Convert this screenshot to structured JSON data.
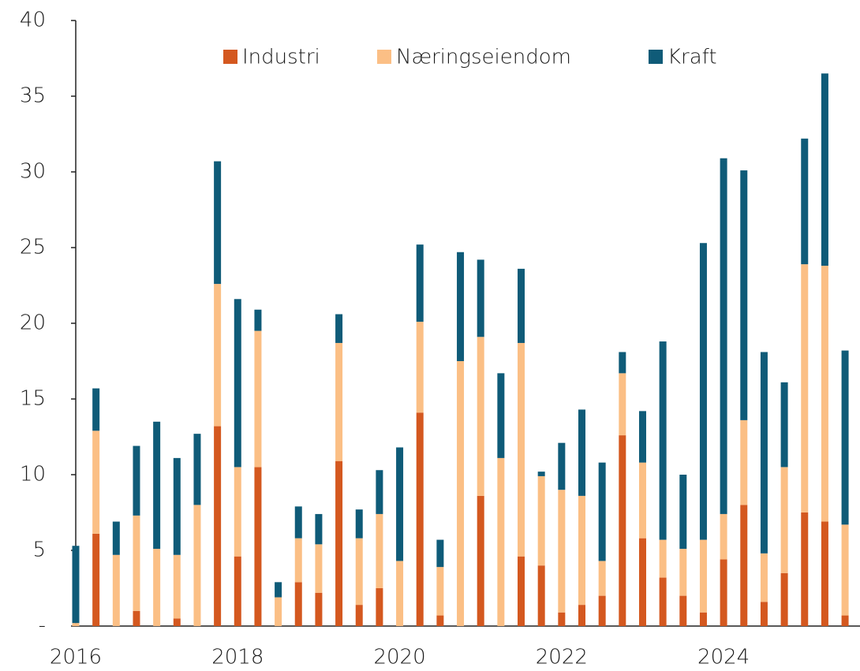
{
  "chart_data": {
    "type": "stacked_bar",
    "categories": [
      "2016",
      null,
      null,
      null,
      null,
      null,
      null,
      null,
      "2018",
      null,
      null,
      null,
      null,
      null,
      null,
      null,
      "2020",
      null,
      null,
      null,
      null,
      null,
      null,
      null,
      "2022",
      null,
      null,
      null,
      null,
      null,
      null,
      null,
      "2024",
      null,
      null,
      null,
      null,
      null,
      null
    ],
    "series": [
      {
        "name": "Industri",
        "color": "#d4581f",
        "values": [
          0,
          6.1,
          0,
          1.0,
          0,
          0.5,
          0,
          13.2,
          4.6,
          10.5,
          0,
          2.9,
          2.2,
          10.9,
          1.4,
          2.5,
          0,
          14.1,
          0.7,
          0,
          8.6,
          0,
          4.6,
          4.0,
          0.9,
          1.4,
          2.0,
          12.6,
          5.8,
          3.2,
          2.0,
          0.9,
          4.4,
          8.0,
          1.6,
          3.5,
          7.5,
          6.9,
          0.7
        ]
      },
      {
        "name": "Næringseiendom",
        "color": "#fbbf85",
        "values": [
          0.2,
          6.8,
          4.7,
          6.3,
          5.1,
          4.2,
          8.0,
          9.4,
          5.9,
          9.0,
          1.9,
          2.9,
          3.2,
          7.8,
          4.4,
          4.9,
          4.3,
          6.0,
          3.2,
          17.5,
          10.5,
          11.1,
          14.1,
          5.9,
          8.1,
          7.2,
          2.3,
          4.1,
          5.0,
          2.5,
          3.1,
          4.8,
          3.0,
          5.6,
          3.2,
          7.0,
          16.4,
          16.9,
          6.0
        ]
      },
      {
        "name": "Kraft",
        "color": "#0f5b78",
        "values": [
          5.1,
          2.8,
          2.2,
          4.6,
          8.4,
          6.4,
          4.7,
          8.1,
          11.1,
          1.4,
          1.0,
          2.1,
          2.0,
          1.9,
          1.9,
          2.9,
          7.5,
          5.1,
          1.8,
          7.2,
          5.1,
          5.6,
          4.9,
          0.3,
          3.1,
          5.7,
          6.5,
          1.4,
          3.4,
          13.1,
          4.9,
          19.6,
          23.5,
          16.5,
          13.3,
          5.6,
          8.3,
          12.7,
          11.5
        ]
      }
    ],
    "ylim": [
      0,
      40
    ],
    "yticks": [
      {
        "value": 0,
        "label": "-"
      },
      5,
      10,
      15,
      20,
      25,
      30,
      35,
      40
    ],
    "grid": false,
    "legend": "top"
  }
}
